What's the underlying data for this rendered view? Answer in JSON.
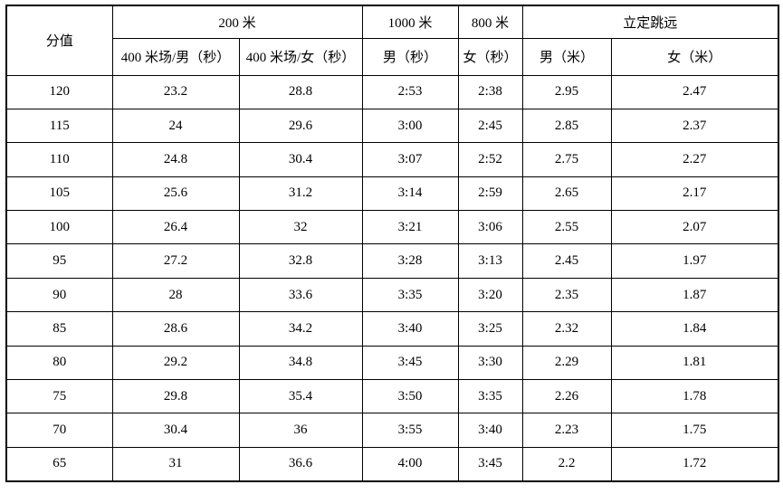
{
  "table": {
    "header": {
      "score_label": "分值",
      "group_200m": "200 米",
      "group_1000m": "1000 米",
      "group_800m": "800 米",
      "group_jump": "立定跳远",
      "col_400m_male": "400 米场/男（秒）",
      "col_400m_female": "400 米场/女（秒）",
      "col_1000m_male": "男（秒）",
      "col_800m_female": "女（秒）",
      "col_jump_male": "男（米）",
      "col_jump_female": "女（米）"
    },
    "rows": [
      [
        "120",
        "23.2",
        "28.8",
        "2:53",
        "2:38",
        "2.95",
        "2.47"
      ],
      [
        "115",
        "24",
        "29.6",
        "3:00",
        "2:45",
        "2.85",
        "2.37"
      ],
      [
        "110",
        "24.8",
        "30.4",
        "3:07",
        "2:52",
        "2.75",
        "2.27"
      ],
      [
        "105",
        "25.6",
        "31.2",
        "3:14",
        "2:59",
        "2.65",
        "2.17"
      ],
      [
        "100",
        "26.4",
        "32",
        "3:21",
        "3:06",
        "2.55",
        "2.07"
      ],
      [
        "95",
        "27.2",
        "32.8",
        "3:28",
        "3:13",
        "2.45",
        "1.97"
      ],
      [
        "90",
        "28",
        "33.6",
        "3:35",
        "3:20",
        "2.35",
        "1.87"
      ],
      [
        "85",
        "28.6",
        "34.2",
        "3:40",
        "3:25",
        "2.32",
        "1.84"
      ],
      [
        "80",
        "29.2",
        "34.8",
        "3:45",
        "3:30",
        "2.29",
        "1.81"
      ],
      [
        "75",
        "29.8",
        "35.4",
        "3:50",
        "3:35",
        "2.26",
        "1.78"
      ],
      [
        "70",
        "30.4",
        "36",
        "3:55",
        "3:40",
        "2.23",
        "1.75"
      ],
      [
        "65",
        "31",
        "36.6",
        "4:00",
        "3:45",
        "2.2",
        "1.72"
      ]
    ]
  },
  "colors": {
    "border": "#000000",
    "text": "#000000",
    "background": "#ffffff"
  }
}
